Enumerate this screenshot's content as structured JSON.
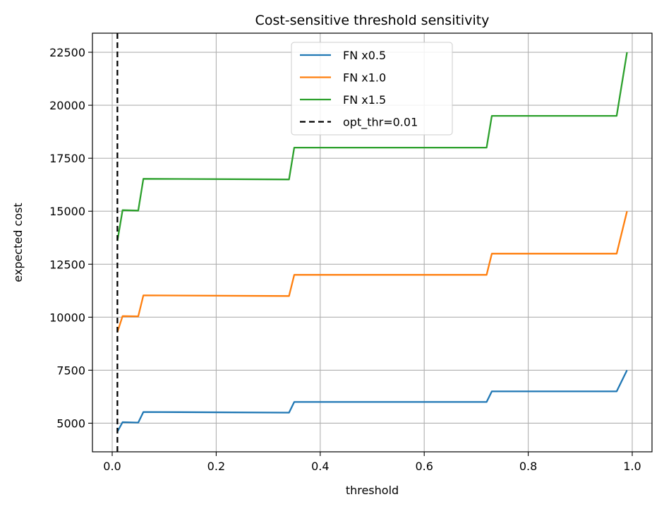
{
  "chart_data": {
    "type": "line",
    "title": "Cost-sensitive threshold sensitivity",
    "xlabel": "threshold",
    "ylabel": "expected cost",
    "xlim": [
      -0.038,
      1.038
    ],
    "ylim": [
      3650,
      23400
    ],
    "xticks": [
      "0.0",
      "0.2",
      "0.4",
      "0.6",
      "0.8",
      "1.0"
    ],
    "yticks": [
      "5000",
      "7500",
      "10000",
      "12500",
      "15000",
      "17500",
      "20000",
      "22500"
    ],
    "grid": true,
    "legend_position": "upper center",
    "series": [
      {
        "name": "FN x0.5",
        "color": "#1f77b4",
        "x": [
          0.01,
          0.02,
          0.05,
          0.06,
          0.34,
          0.35,
          0.72,
          0.73,
          0.97,
          0.99
        ],
        "y": [
          4600,
          5050,
          5030,
          5530,
          5500,
          6000,
          6000,
          6500,
          6500,
          7500
        ]
      },
      {
        "name": "FN x1.0",
        "color": "#ff7f0e",
        "x": [
          0.01,
          0.02,
          0.05,
          0.06,
          0.34,
          0.35,
          0.72,
          0.73,
          0.97,
          0.99
        ],
        "y": [
          9300,
          10050,
          10040,
          11030,
          11000,
          12000,
          12000,
          13000,
          13000,
          15000
        ]
      },
      {
        "name": "FN x1.5",
        "color": "#2ca02c",
        "x": [
          0.01,
          0.02,
          0.05,
          0.06,
          0.34,
          0.35,
          0.72,
          0.73,
          0.97,
          0.99
        ],
        "y": [
          13600,
          15050,
          15030,
          16530,
          16500,
          18000,
          18000,
          19500,
          19500,
          22500
        ]
      }
    ],
    "vline": {
      "name": "opt_thr=0.01",
      "x": 0.01,
      "color": "#000000",
      "style": "dashed"
    }
  }
}
